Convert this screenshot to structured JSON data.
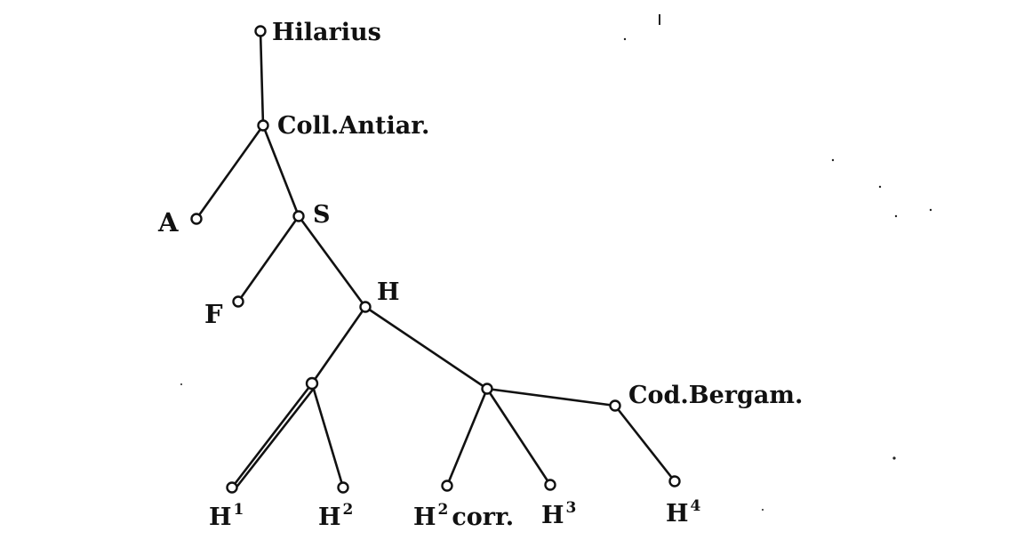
{
  "nodes": {
    "hilarius": {
      "label": "Hilarius"
    },
    "coll_antiar": {
      "label": "Coll.Antiar."
    },
    "a": {
      "label": "A"
    },
    "s": {
      "label": "S"
    },
    "f": {
      "label": "F"
    },
    "h": {
      "label": "H"
    },
    "cod_bergam": {
      "label": "Cod.Bergam."
    },
    "h1": {
      "label": "H",
      "sup": "1"
    },
    "h2": {
      "label": "H",
      "sup": "2"
    },
    "h2corr": {
      "label": "H",
      "sup": "2",
      "suffix": "corr."
    },
    "h3": {
      "label": "H",
      "sup": "3"
    },
    "h4": {
      "label": "H",
      "sup": "4"
    }
  }
}
